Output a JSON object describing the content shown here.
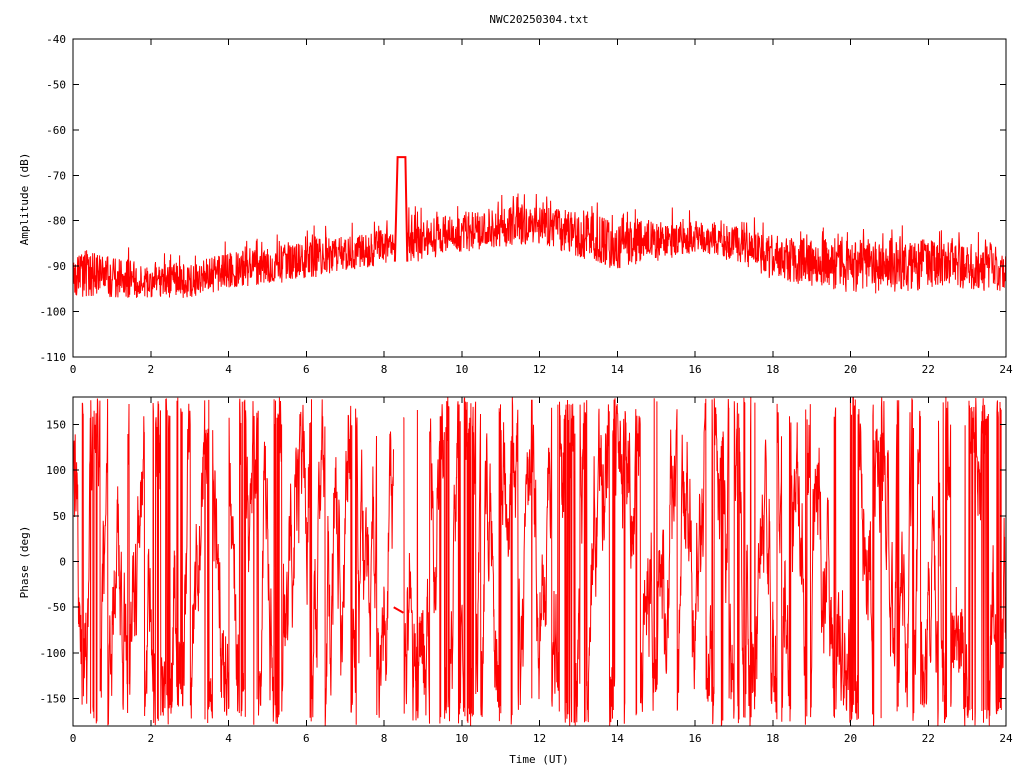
{
  "title": "NWC20250304.txt",
  "colors": {
    "trace": "#ff0000",
    "axes": "#000000",
    "background": "#ffffff"
  },
  "chart_data": [
    {
      "type": "line",
      "title": "NWC20250304.txt",
      "xlabel": "",
      "ylabel": "Amplitude (dB)",
      "xlim": [
        0,
        24
      ],
      "ylim": [
        -110,
        -40
      ],
      "xticks": [
        "0",
        "2",
        "4",
        "6",
        "8",
        "10",
        "12",
        "14",
        "16",
        "18",
        "20",
        "22",
        "24"
      ],
      "yticks": [
        "-40",
        "-50",
        "-60",
        "-70",
        "-80",
        "-90",
        "-100",
        "-110"
      ],
      "grid": false,
      "envelope": {
        "x": [
          0,
          1,
          2,
          3,
          4,
          5,
          6,
          7,
          8,
          8.3,
          8.6,
          9,
          10,
          11,
          12,
          13,
          14,
          15,
          16,
          17,
          18,
          19,
          20,
          21,
          22,
          23,
          24
        ],
        "upper": [
          -86,
          -88,
          -89,
          -89,
          -87,
          -86,
          -84,
          -83,
          -82,
          -81,
          -79,
          -80,
          -78,
          -77,
          -77,
          -78,
          -80,
          -80,
          -80,
          -81,
          -83,
          -84,
          -84,
          -84,
          -84,
          -85,
          -86
        ],
        "lower": [
          -97,
          -97,
          -97,
          -97,
          -95,
          -94,
          -93,
          -91,
          -90,
          -88,
          -89,
          -89,
          -87,
          -86,
          -85,
          -88,
          -91,
          -89,
          -87,
          -89,
          -93,
          -95,
          -96,
          -96,
          -95,
          -95,
          -96
        ]
      },
      "plateau": {
        "x": [
          8.28,
          8.35,
          8.55,
          8.6
        ],
        "y": [
          -89,
          -66,
          -66,
          -89
        ]
      }
    },
    {
      "type": "line",
      "title": "",
      "xlabel": "Time (UT)",
      "ylabel": "Phase (deg)",
      "xlim": [
        0,
        24
      ],
      "ylim": [
        -180,
        180
      ],
      "xticks": [
        "0",
        "2",
        "4",
        "6",
        "8",
        "10",
        "12",
        "14",
        "16",
        "18",
        "20",
        "22",
        "24"
      ],
      "yticks": [
        "150",
        "100",
        "50",
        "0",
        "-50",
        "-100",
        "-150"
      ],
      "grid": false,
      "wrapped": true,
      "plateau": {
        "x": [
          8.25,
          8.5
        ],
        "y": [
          -50,
          -56
        ]
      },
      "gap": [
        8.25,
        8.5
      ]
    }
  ]
}
